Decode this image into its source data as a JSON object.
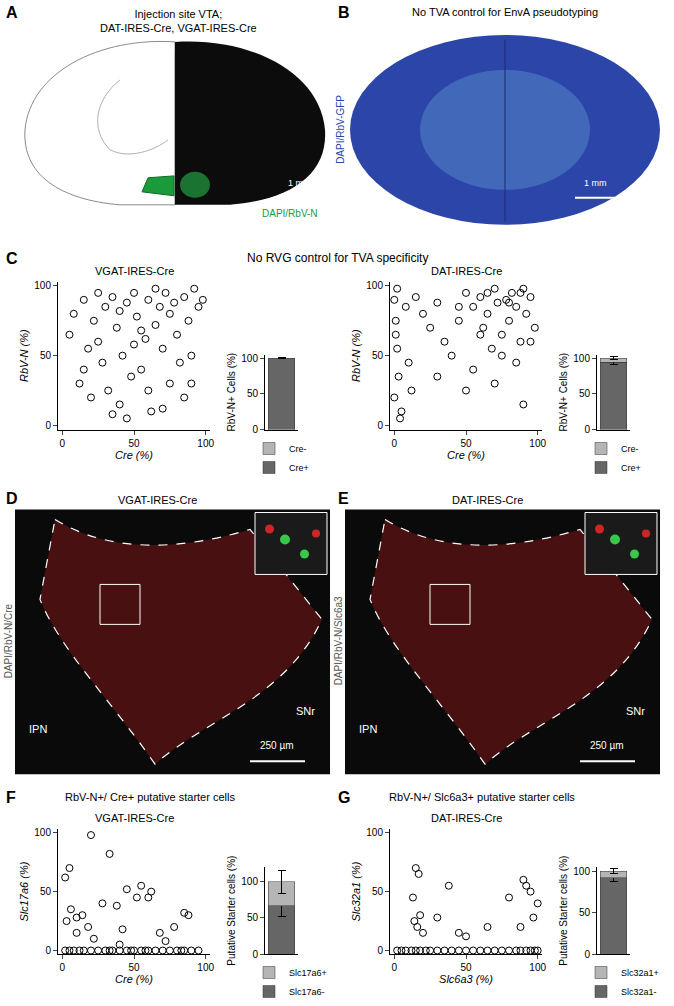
{
  "panels": {
    "A": {
      "letter": "A",
      "title": [
        "Injection site VTA;",
        "DAT-IRES-Cre, VGAT-IRES-Cre"
      ],
      "stain_label": "DAPI/RbV-N",
      "scale_bar": "1 mm"
    },
    "B": {
      "letter": "B",
      "title": [
        "No TVA control for EnvA pseudotyping"
      ],
      "stain_label": "DAPI/RbV-GFP",
      "scale_bar": "1 mm"
    },
    "C": {
      "letter": "C",
      "title": [
        "No RVG control for TVA specificity"
      ]
    },
    "D": {
      "letter": "D",
      "title": [
        "VGAT-IRES-Cre"
      ],
      "stain_label": "DAPI/RbV-N/Cre",
      "regions": [
        "IPN",
        "SNr"
      ],
      "scale_bar": "250 µm"
    },
    "E": {
      "letter": "E",
      "title": [
        "DAT-IRES-Cre"
      ],
      "stain_label": "DAPI/RbV-N/Slc6a3",
      "regions": [
        "IPN",
        "SNr"
      ],
      "scale_bar": "250 µm"
    },
    "F": {
      "letter": "F",
      "title": [
        "RbV-N+/ Cre+ putative starter cells"
      ]
    },
    "G": {
      "letter": "G",
      "title": [
        "RbV-N+/ Slc6a3+ putative starter cells"
      ]
    }
  },
  "chart_data": [
    {
      "type": "scatter",
      "title": "VGAT-IRES-Cre",
      "x_label": "Cre (%)",
      "y_label": "RbV-N (%)",
      "x": [
        5,
        8,
        12,
        15,
        18,
        20,
        22,
        25,
        28,
        30,
        32,
        35,
        38,
        40,
        42,
        45,
        48,
        50,
        52,
        55,
        58,
        60,
        62,
        65,
        68,
        70,
        72,
        75,
        78,
        80,
        82,
        85,
        88,
        90,
        92,
        95,
        98,
        35,
        60,
        85,
        45,
        70,
        25,
        55,
        15,
        75,
        50,
        65,
        90,
        40
      ],
      "values": [
        65,
        80,
        30,
        90,
        55,
        20,
        75,
        60,
        45,
        85,
        25,
        92,
        70,
        15,
        50,
        88,
        35,
        95,
        78,
        40,
        62,
        90,
        10,
        72,
        85,
        55,
        95,
        30,
        88,
        65,
        45,
        92,
        75,
        50,
        98,
        85,
        90,
        8,
        25,
        20,
        5,
        12,
        95,
        68,
        40,
        80,
        58,
        98,
        30,
        82
      ],
      "xlim": [
        -3,
        103
      ],
      "ylim": [
        -3,
        103
      ],
      "xticks": [
        0,
        50,
        100
      ],
      "yticks": [
        0,
        50,
        100
      ],
      "color": "#000000",
      "marker": "open-circle"
    },
    {
      "type": "bar",
      "y_label": "RbV-N+ Cells (%)",
      "categories": [
        null
      ],
      "stacked": true,
      "tick_labels": "y",
      "legend": "bottom",
      "series": [
        {
          "name": "Cre+",
          "color": "#666666",
          "values": [
            99.5
          ],
          "errors": [
            0.3
          ]
        },
        {
          "name": "Cre-",
          "color": "#b5b5b5",
          "values": [
            0.5
          ],
          "errors": [
            0.3
          ]
        }
      ],
      "ylim": [
        0,
        105
      ],
      "yticks": [
        0,
        50,
        100
      ]
    },
    {
      "type": "scatter",
      "title": "DAT-IRES-Cre",
      "x_label": "Cre (%)",
      "y_label": "RbV-N (%)",
      "x": [
        0,
        1,
        2,
        3,
        5,
        2,
        1,
        8,
        10,
        15,
        20,
        25,
        30,
        35,
        40,
        45,
        50,
        55,
        60,
        62,
        65,
        68,
        70,
        72,
        75,
        78,
        80,
        82,
        85,
        88,
        90,
        92,
        95,
        98,
        0,
        4,
        55,
        70,
        85,
        90,
        60,
        75,
        50,
        80,
        65,
        95,
        30,
        12,
        88,
        45
      ],
      "values": [
        90,
        75,
        55,
        35,
        10,
        98,
        65,
        85,
        45,
        92,
        80,
        70,
        88,
        60,
        50,
        75,
        95,
        85,
        92,
        70,
        80,
        55,
        98,
        88,
        65,
        90,
        75,
        95,
        85,
        60,
        98,
        80,
        92,
        70,
        20,
        5,
        40,
        30,
        45,
        15,
        65,
        50,
        25,
        88,
        95,
        60,
        35,
        25,
        95,
        85
      ],
      "xlim": [
        -3,
        103
      ],
      "ylim": [
        -3,
        103
      ],
      "xticks": [
        0,
        50,
        100
      ],
      "yticks": [
        0,
        50,
        100
      ],
      "color": "#000000",
      "marker": "open-circle"
    },
    {
      "type": "bar",
      "y_label": "RbV-N+ Cells (%)",
      "categories": [
        null
      ],
      "stacked": true,
      "tick_labels": "y",
      "legend": "bottom",
      "series": [
        {
          "name": "Cre+",
          "color": "#666666",
          "values": [
            94
          ],
          "errors": [
            3
          ]
        },
        {
          "name": "Cre-",
          "color": "#b5b5b5",
          "values": [
            6
          ],
          "errors": [
            2
          ]
        }
      ],
      "ylim": [
        0,
        105
      ],
      "yticks": [
        0,
        50,
        100
      ]
    },
    {
      "type": "scatter",
      "title": "VGAT-IRES-Cre",
      "x_label": "Cre (%)",
      "y_label": "Slc17a6 (%)",
      "x": [
        2,
        5,
        8,
        12,
        15,
        20,
        25,
        30,
        33,
        35,
        40,
        45,
        48,
        50,
        55,
        58,
        60,
        65,
        70,
        75,
        80,
        83,
        85,
        90,
        95,
        3,
        6,
        10,
        14,
        18,
        22,
        28,
        38,
        42,
        52,
        62,
        68,
        72,
        78,
        88,
        20,
        33,
        5,
        2,
        45,
        55,
        60,
        85,
        10,
        40
      ],
      "values": [
        0,
        0,
        0,
        0,
        0,
        0,
        0,
        0,
        0,
        0,
        0,
        0,
        0,
        0,
        0,
        0,
        0,
        0,
        0,
        0,
        0,
        0,
        0,
        0,
        0,
        25,
        35,
        15,
        30,
        20,
        10,
        40,
        38,
        18,
        45,
        50,
        15,
        8,
        20,
        30,
        98,
        82,
        70,
        62,
        52,
        55,
        45,
        32,
        28,
        5
      ],
      "xlim": [
        -3,
        103
      ],
      "ylim": [
        -3,
        103
      ],
      "xticks": [
        0,
        50,
        100
      ],
      "yticks": [
        0,
        50,
        100
      ],
      "color": "#000000",
      "marker": "open-circle"
    },
    {
      "type": "bar",
      "y_label": "Putative Starter cells (%)",
      "categories": [
        null
      ],
      "stacked": true,
      "tick_labels": "y",
      "legend": "bottom",
      "series": [
        {
          "name": "Slc17a6-",
          "color": "#666666",
          "values": [
            67
          ],
          "errors": [
            15
          ]
        },
        {
          "name": "Slc17a6+",
          "color": "#b5b5b5",
          "values": [
            33
          ],
          "errors": [
            16
          ]
        }
      ],
      "ylim": [
        0,
        120
      ],
      "yticks": [
        0,
        50,
        100
      ]
    },
    {
      "type": "scatter",
      "title": "DAT-IRES-Cre",
      "x_label": "Slc6a3 (%)",
      "y_label": "Slc32a1 (%)",
      "x": [
        2,
        5,
        8,
        12,
        15,
        18,
        22,
        25,
        30,
        35,
        40,
        45,
        50,
        55,
        60,
        65,
        70,
        75,
        80,
        85,
        88,
        92,
        95,
        98,
        100,
        13,
        15,
        17,
        18,
        20,
        16,
        14,
        38,
        45,
        65,
        80,
        88,
        90,
        92,
        95,
        97,
        100,
        50,
        30
      ],
      "values": [
        0,
        0,
        0,
        0,
        0,
        0,
        0,
        0,
        0,
        0,
        0,
        0,
        0,
        0,
        0,
        0,
        0,
        0,
        0,
        0,
        0,
        0,
        0,
        0,
        0,
        45,
        70,
        65,
        30,
        15,
        20,
        25,
        55,
        15,
        20,
        45,
        20,
        60,
        55,
        50,
        28,
        40,
        12,
        28
      ],
      "xlim": [
        -3,
        103
      ],
      "ylim": [
        -3,
        103
      ],
      "xticks": [
        0,
        50,
        100
      ],
      "yticks": [
        0,
        50,
        100
      ],
      "color": "#000000",
      "marker": "open-circle"
    },
    {
      "type": "bar",
      "y_label": "Putative Starter cells (%)",
      "categories": [
        null
      ],
      "stacked": true,
      "tick_labels": "y",
      "legend": "bottom",
      "series": [
        {
          "name": "Slc32a1-",
          "color": "#666666",
          "values": [
            92
          ],
          "errors": [
            4
          ]
        },
        {
          "name": "Slc32a1+",
          "color": "#b5b5b5",
          "values": [
            8
          ],
          "errors": [
            3
          ]
        }
      ],
      "ylim": [
        0,
        105
      ],
      "yticks": [
        0,
        50,
        100
      ]
    }
  ]
}
